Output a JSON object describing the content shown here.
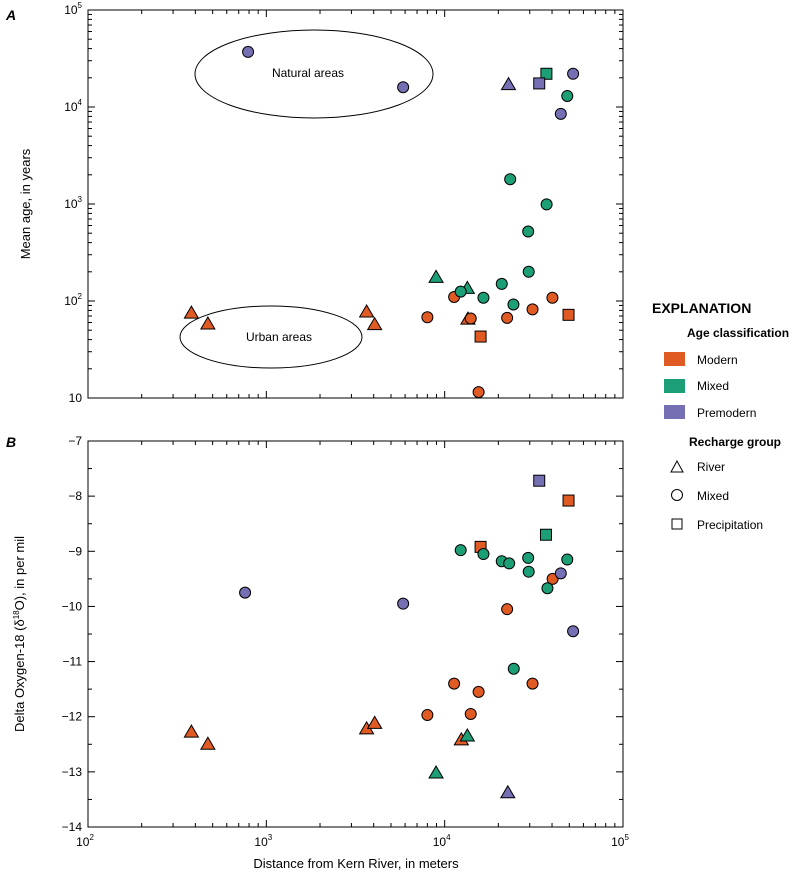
{
  "chart_data": [
    {
      "panel": "A",
      "type": "scatter",
      "xscale": "log",
      "yscale": "log",
      "xlim": [
        100,
        100000
      ],
      "ylim": [
        10,
        100000
      ],
      "xlabel": "",
      "ylabel": "Mean age, in years",
      "yticks": [
        {
          "v": 10,
          "b": "10",
          "e": ""
        },
        {
          "v": 100,
          "b": "10",
          "e": "2"
        },
        {
          "v": 1000,
          "b": "10",
          "e": "3"
        },
        {
          "v": 10000,
          "b": "10",
          "e": "4"
        },
        {
          "v": 100000,
          "b": "10",
          "e": "5"
        }
      ],
      "annotations": [
        {
          "text": "Natural areas",
          "x": 1700,
          "y": 32000
        },
        {
          "text": "Urban areas",
          "x": 1000,
          "y": 72
        }
      ],
      "points": [
        {
          "x": 380,
          "y": 75,
          "shape": "triangle",
          "cls": "Modern"
        },
        {
          "x": 470,
          "y": 58,
          "shape": "triangle",
          "cls": "Modern"
        },
        {
          "x": 3650,
          "y": 77,
          "shape": "triangle",
          "cls": "Modern"
        },
        {
          "x": 4050,
          "y": 57,
          "shape": "triangle",
          "cls": "Modern"
        },
        {
          "x": 13500,
          "y": 65,
          "shape": "triangle",
          "cls": "Modern"
        },
        {
          "x": 8950,
          "y": 175,
          "shape": "triangle",
          "cls": "Mixed"
        },
        {
          "x": 13400,
          "y": 135,
          "shape": "triangle",
          "cls": "Mixed"
        },
        {
          "x": 22800,
          "y": 17000,
          "shape": "triangle",
          "cls": "Premodern"
        },
        {
          "x": 15900,
          "y": 43,
          "shape": "square",
          "cls": "Modern"
        },
        {
          "x": 49500,
          "y": 72,
          "shape": "square",
          "cls": "Modern"
        },
        {
          "x": 37200,
          "y": 22000,
          "shape": "square",
          "cls": "Mixed"
        },
        {
          "x": 33900,
          "y": 17500,
          "shape": "square",
          "cls": "Premodern"
        },
        {
          "x": 8000,
          "y": 68,
          "shape": "circle",
          "cls": "Modern"
        },
        {
          "x": 11300,
          "y": 110,
          "shape": "circle",
          "cls": "Modern"
        },
        {
          "x": 14000,
          "y": 66,
          "shape": "circle",
          "cls": "Modern"
        },
        {
          "x": 15500,
          "y": 11.5,
          "shape": "circle",
          "cls": "Modern"
        },
        {
          "x": 22400,
          "y": 67,
          "shape": "circle",
          "cls": "Modern"
        },
        {
          "x": 31100,
          "y": 82,
          "shape": "circle",
          "cls": "Modern"
        },
        {
          "x": 40200,
          "y": 108,
          "shape": "circle",
          "cls": "Modern"
        },
        {
          "x": 12300,
          "y": 125,
          "shape": "circle",
          "cls": "Mixed"
        },
        {
          "x": 16500,
          "y": 108,
          "shape": "circle",
          "cls": "Mixed"
        },
        {
          "x": 20900,
          "y": 150,
          "shape": "circle",
          "cls": "Mixed"
        },
        {
          "x": 23300,
          "y": 1800,
          "shape": "circle",
          "cls": "Mixed"
        },
        {
          "x": 24300,
          "y": 92,
          "shape": "circle",
          "cls": "Mixed"
        },
        {
          "x": 29400,
          "y": 520,
          "shape": "circle",
          "cls": "Mixed"
        },
        {
          "x": 29600,
          "y": 200,
          "shape": "circle",
          "cls": "Mixed"
        },
        {
          "x": 37300,
          "y": 990,
          "shape": "circle",
          "cls": "Mixed"
        },
        {
          "x": 48700,
          "y": 13000,
          "shape": "circle",
          "cls": "Mixed"
        },
        {
          "x": 790,
          "y": 37000,
          "shape": "circle",
          "cls": "Premodern"
        },
        {
          "x": 5850,
          "y": 16000,
          "shape": "circle",
          "cls": "Premodern"
        },
        {
          "x": 44800,
          "y": 8500,
          "shape": "circle",
          "cls": "Premodern"
        },
        {
          "x": 52500,
          "y": 22000,
          "shape": "circle",
          "cls": "Premodern"
        }
      ]
    },
    {
      "panel": "B",
      "type": "scatter",
      "xscale": "log",
      "yscale": "linear",
      "xlim": [
        100,
        100000
      ],
      "ylim": [
        -14,
        -7
      ],
      "xlabel": "Distance from Kern River, in meters",
      "ylabel_parts": [
        "Delta Oxygen-18 (δ",
        "18",
        "O), in per  mil"
      ],
      "xticks": [
        {
          "v": 100,
          "b": "10",
          "e": "2"
        },
        {
          "v": 1000,
          "b": "10",
          "e": "3"
        },
        {
          "v": 10000,
          "b": "10",
          "e": "4"
        },
        {
          "v": 100000,
          "b": "10",
          "e": "5"
        }
      ],
      "yticks": [
        "−7",
        "−8",
        "−9",
        "−10",
        "−11",
        "−12",
        "−13",
        "−14"
      ],
      "points": [
        {
          "x": 380,
          "y": -12.28,
          "shape": "triangle",
          "cls": "Modern"
        },
        {
          "x": 470,
          "y": -12.5,
          "shape": "triangle",
          "cls": "Modern"
        },
        {
          "x": 3650,
          "y": -12.22,
          "shape": "triangle",
          "cls": "Modern"
        },
        {
          "x": 4050,
          "y": -12.12,
          "shape": "triangle",
          "cls": "Modern"
        },
        {
          "x": 12400,
          "y": -12.42,
          "shape": "triangle",
          "cls": "Modern"
        },
        {
          "x": 8950,
          "y": -13.02,
          "shape": "triangle",
          "cls": "Mixed"
        },
        {
          "x": 13400,
          "y": -12.35,
          "shape": "triangle",
          "cls": "Mixed"
        },
        {
          "x": 22600,
          "y": -13.38,
          "shape": "triangle",
          "cls": "Premodern"
        },
        {
          "x": 15900,
          "y": -8.92,
          "shape": "square",
          "cls": "Modern"
        },
        {
          "x": 49500,
          "y": -8.08,
          "shape": "square",
          "cls": "Modern"
        },
        {
          "x": 37000,
          "y": -8.7,
          "shape": "square",
          "cls": "Mixed"
        },
        {
          "x": 33900,
          "y": -7.72,
          "shape": "square",
          "cls": "Premodern"
        },
        {
          "x": 8000,
          "y": -11.97,
          "shape": "circle",
          "cls": "Modern"
        },
        {
          "x": 11300,
          "y": -11.4,
          "shape": "circle",
          "cls": "Modern"
        },
        {
          "x": 14000,
          "y": -11.95,
          "shape": "circle",
          "cls": "Modern"
        },
        {
          "x": 15500,
          "y": -11.55,
          "shape": "circle",
          "cls": "Modern"
        },
        {
          "x": 22400,
          "y": -10.05,
          "shape": "circle",
          "cls": "Modern"
        },
        {
          "x": 31100,
          "y": -11.4,
          "shape": "circle",
          "cls": "Modern"
        },
        {
          "x": 40300,
          "y": -9.5,
          "shape": "circle",
          "cls": "Modern"
        },
        {
          "x": 12300,
          "y": -8.98,
          "shape": "circle",
          "cls": "Mixed"
        },
        {
          "x": 16500,
          "y": -9.05,
          "shape": "circle",
          "cls": "Mixed"
        },
        {
          "x": 20900,
          "y": -9.18,
          "shape": "circle",
          "cls": "Mixed"
        },
        {
          "x": 23000,
          "y": -9.22,
          "shape": "circle",
          "cls": "Mixed"
        },
        {
          "x": 24400,
          "y": -11.13,
          "shape": "circle",
          "cls": "Mixed"
        },
        {
          "x": 29400,
          "y": -9.12,
          "shape": "circle",
          "cls": "Mixed"
        },
        {
          "x": 29600,
          "y": -9.37,
          "shape": "circle",
          "cls": "Mixed"
        },
        {
          "x": 37700,
          "y": -9.67,
          "shape": "circle",
          "cls": "Mixed"
        },
        {
          "x": 48700,
          "y": -9.15,
          "shape": "circle",
          "cls": "Mixed"
        },
        {
          "x": 760,
          "y": -9.75,
          "shape": "circle",
          "cls": "Premodern"
        },
        {
          "x": 5850,
          "y": -9.95,
          "shape": "circle",
          "cls": "Premodern"
        },
        {
          "x": 44800,
          "y": -9.4,
          "shape": "circle",
          "cls": "Premodern"
        },
        {
          "x": 52500,
          "y": -10.45,
          "shape": "circle",
          "cls": "Premodern"
        }
      ]
    }
  ],
  "legend": {
    "title": "EXPLANATION",
    "age_title": "Age classification",
    "age_items": [
      {
        "label": "Modern",
        "color": "#e05a23"
      },
      {
        "label": "Mixed",
        "color": "#1c9e77"
      },
      {
        "label": "Premodern",
        "color": "#7570b3"
      }
    ],
    "recharge_title": "Recharge group",
    "recharge_items": [
      {
        "label": "River",
        "shape": "triangle"
      },
      {
        "label": "Mixed",
        "shape": "circle"
      },
      {
        "label": "Precipitation",
        "shape": "square"
      }
    ]
  },
  "colors": {
    "Modern": "#e05a23",
    "Mixed": "#1c9e77",
    "Premodern": "#7570b3"
  }
}
